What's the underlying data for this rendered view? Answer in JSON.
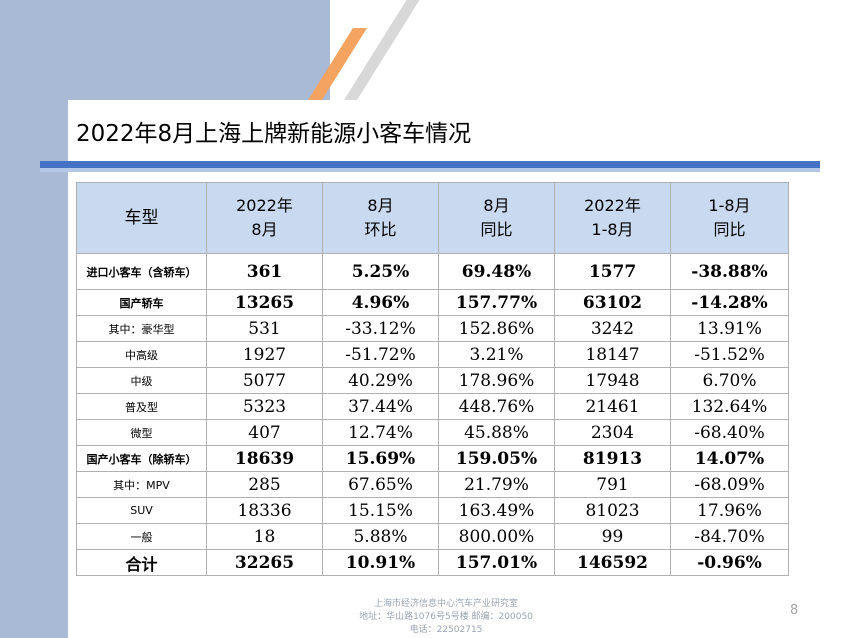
{
  "title": "2022年8月上海上牌新能源小客车情况",
  "table": {
    "headers": [
      {
        "line1": "车型",
        "line2": ""
      },
      {
        "line1": "2022年",
        "line2": "8月"
      },
      {
        "line1": "8月",
        "line2": "环比"
      },
      {
        "line1": "8月",
        "line2": "同比"
      },
      {
        "line1": "2022年",
        "line2": "1-8月"
      },
      {
        "line1": "1-8月",
        "line2": "同比"
      }
    ],
    "rows": [
      {
        "label": "进口小客车（含轿车）",
        "values": [
          "361",
          "5.25%",
          "69.48%",
          "1577",
          "-38.88%"
        ],
        "bold": true
      },
      {
        "label": "国产轿车",
        "values": [
          "13265",
          "4.96%",
          "157.77%",
          "63102",
          "-14.28%"
        ],
        "bold": true
      },
      {
        "label": "其中：豪华型",
        "values": [
          "531",
          "-33.12%",
          "152.86%",
          "3242",
          "13.91%"
        ],
        "bold": false
      },
      {
        "label": "中高级",
        "values": [
          "1927",
          "-51.72%",
          "3.21%",
          "18147",
          "-51.52%"
        ],
        "bold": false
      },
      {
        "label": "中级",
        "values": [
          "5077",
          "40.29%",
          "178.96%",
          "17948",
          "6.70%"
        ],
        "bold": false
      },
      {
        "label": "普及型",
        "values": [
          "5323",
          "37.44%",
          "448.76%",
          "21461",
          "132.64%"
        ],
        "bold": false
      },
      {
        "label": "微型",
        "values": [
          "407",
          "12.74%",
          "45.88%",
          "2304",
          "-68.40%"
        ],
        "bold": false
      },
      {
        "label": "国产小客车（除轿车）",
        "values": [
          "18639",
          "15.69%",
          "159.05%",
          "81913",
          "14.07%"
        ],
        "bold": true
      },
      {
        "label": "其中：MPV",
        "values": [
          "285",
          "67.65%",
          "21.79%",
          "791",
          "-68.09%"
        ],
        "bold": false
      },
      {
        "label": "SUV",
        "values": [
          "18336",
          "15.15%",
          "163.49%",
          "81023",
          "17.96%"
        ],
        "bold": false
      },
      {
        "label": "一般",
        "values": [
          "18",
          "5.88%",
          "800.00%",
          "99",
          "-84.70%"
        ],
        "bold": false
      },
      {
        "label": "合计",
        "values": [
          "32265",
          "10.91%",
          "157.01%",
          "146592",
          "-0.96%"
        ],
        "bold": true,
        "total": true
      }
    ]
  },
  "footer": {
    "line1": "上海市经济信息中心汽车产业研究室",
    "line2": "地址：华山路1076号5号楼 邮编：200050",
    "line3": "电话：22502715"
  },
  "page_number": "8",
  "colors": {
    "band": "#a9bad6",
    "header_fill": "#c9d9ef",
    "rule_dark": "#4472c4",
    "rule_light": "#b4c7e7",
    "accent_orange": "#f4a460"
  }
}
